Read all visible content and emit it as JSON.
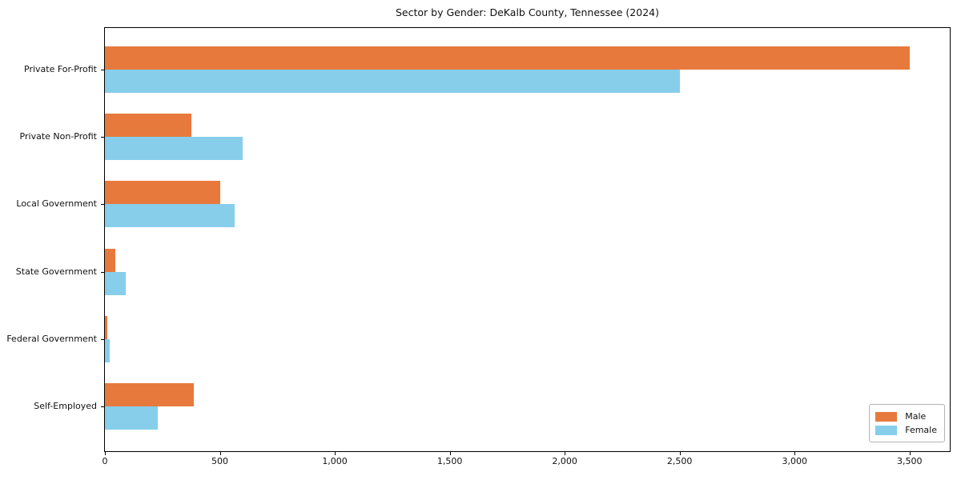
{
  "title": "Sector by Gender: DeKalb County, Tennessee (2024)",
  "chart_data": {
    "type": "bar",
    "orientation": "horizontal",
    "title": "Sector by Gender: DeKalb County, Tennessee (2024)",
    "xlabel": "",
    "ylabel": "",
    "categories": [
      "Private For-Profit",
      "Private Non-Profit",
      "Local Government",
      "State Government",
      "Federal Government",
      "Self-Employed"
    ],
    "series": [
      {
        "name": "Male",
        "color": "#E8793D",
        "values": [
          3500,
          375,
          500,
          45,
          10,
          385
        ]
      },
      {
        "name": "Female",
        "color": "#87CEEB",
        "values": [
          2500,
          600,
          565,
          90,
          20,
          230
        ]
      }
    ],
    "xlim": [
      0,
      3675
    ],
    "xticks": [
      0,
      500,
      1000,
      1500,
      2000,
      2500,
      3000,
      3500
    ],
    "xtick_labels": [
      "0",
      "500",
      "1,000",
      "1,500",
      "2,000",
      "2,500",
      "3,000",
      "3,500"
    ],
    "grid": false,
    "legend_position": "lower right",
    "plot_border_color": "#000000",
    "background_color": "#ffffff"
  }
}
